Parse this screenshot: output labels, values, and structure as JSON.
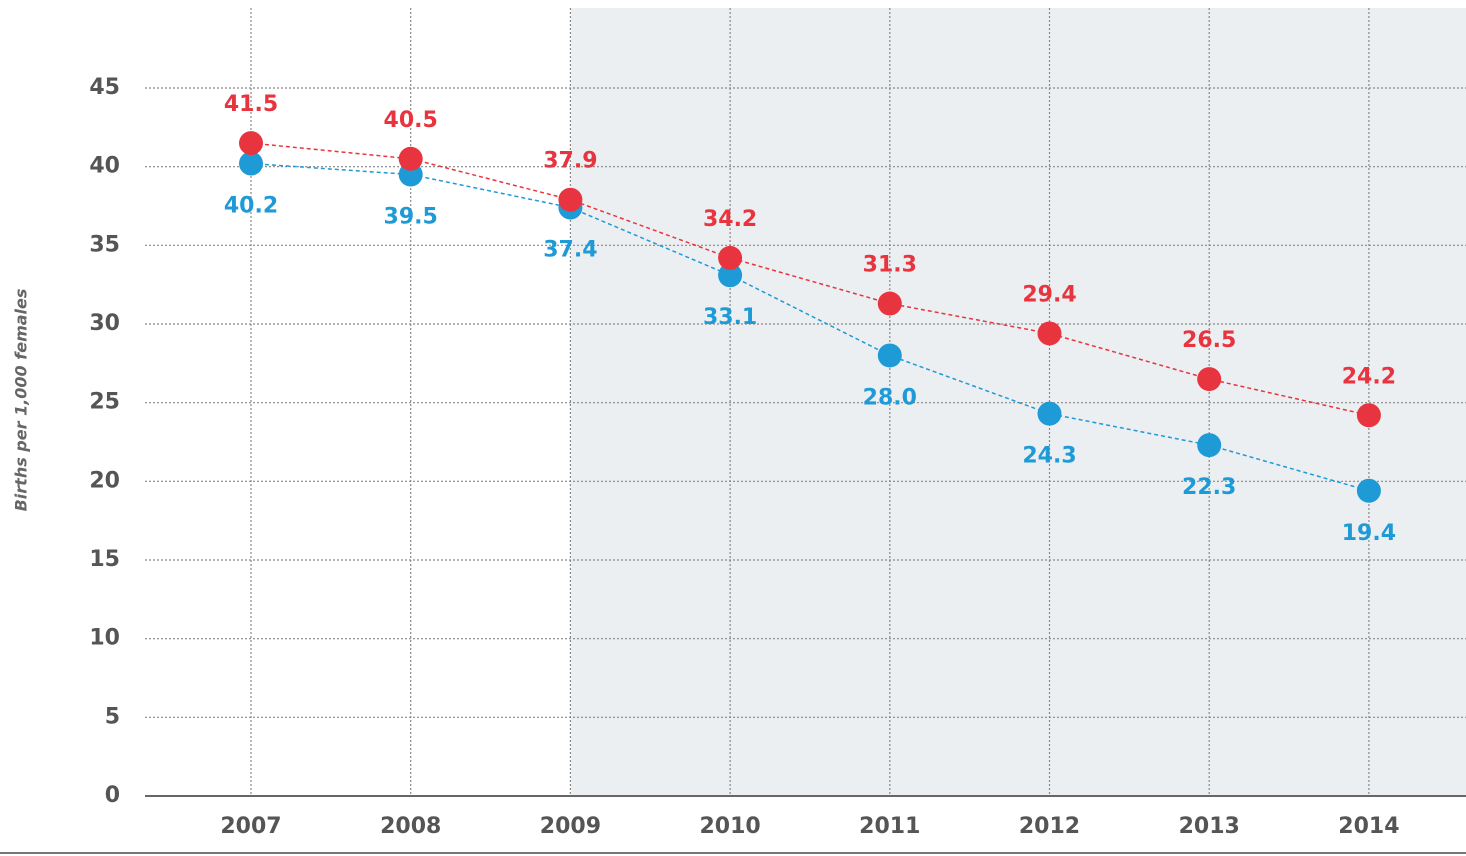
{
  "chart_data": {
    "type": "line",
    "y_label": "Births per 1,000 females",
    "categories": [
      "2007",
      "2008",
      "2009",
      "2010",
      "2011",
      "2012",
      "2013",
      "2014"
    ],
    "series": [
      {
        "color": "#e8343f",
        "values": [
          41.5,
          40.5,
          37.9,
          34.2,
          31.3,
          29.4,
          26.5,
          24.2
        ],
        "value_labels": [
          "41.5",
          "40.5",
          "37.9",
          "34.2",
          "31.3",
          "29.4",
          "26.5",
          "24.2"
        ]
      },
      {
        "color": "#1e9ad6",
        "values": [
          40.2,
          39.5,
          37.4,
          33.1,
          28.0,
          24.3,
          22.3,
          19.4
        ],
        "value_labels": [
          "40.2",
          "39.5",
          "37.4",
          "33.1",
          "28.0",
          "24.3",
          "22.3",
          "19.4"
        ]
      }
    ],
    "ylim": [
      0,
      45
    ],
    "yticks": [
      0,
      5,
      10,
      15,
      20,
      25,
      30,
      35,
      40,
      45
    ],
    "grid": true
  }
}
